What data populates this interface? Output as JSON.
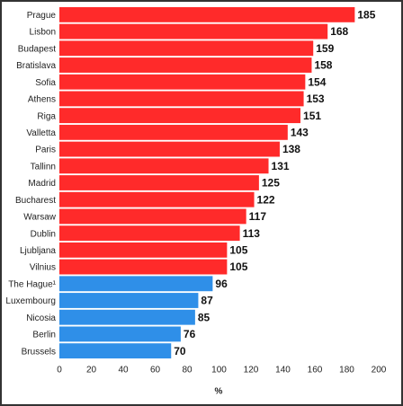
{
  "chart_data": {
    "type": "hbar",
    "categories": [
      "Prague",
      "Lisbon",
      "Budapest",
      "Bratislava",
      "Sofia",
      "Athens",
      "Riga",
      "Valletta",
      "Paris",
      "Tallinn",
      "Madrid",
      "Bucharest",
      "Warsaw",
      "Dublin",
      "Ljubljana",
      "Vilnius",
      "The Hague¹",
      "Luxembourg",
      "Nicosia",
      "Berlin",
      "Brussels"
    ],
    "values": [
      185,
      168,
      159,
      158,
      154,
      153,
      151,
      143,
      138,
      131,
      125,
      122,
      117,
      113,
      105,
      105,
      96,
      87,
      85,
      76,
      70
    ],
    "colors": [
      "#ff2a2a",
      "#ff2a2a",
      "#ff2a2a",
      "#ff2a2a",
      "#ff2a2a",
      "#ff2a2a",
      "#ff2a2a",
      "#ff2a2a",
      "#ff2a2a",
      "#ff2a2a",
      "#ff2a2a",
      "#ff2a2a",
      "#ff2a2a",
      "#ff2a2a",
      "#ff2a2a",
      "#ff2a2a",
      "#2f8fe8",
      "#2f8fe8",
      "#2f8fe8",
      "#2f8fe8",
      "#2f8fe8"
    ],
    "xlim": [
      0,
      200
    ],
    "xticks": [
      0,
      20,
      40,
      60,
      80,
      100,
      120,
      140,
      160,
      180,
      200
    ],
    "x_label": "%"
  }
}
